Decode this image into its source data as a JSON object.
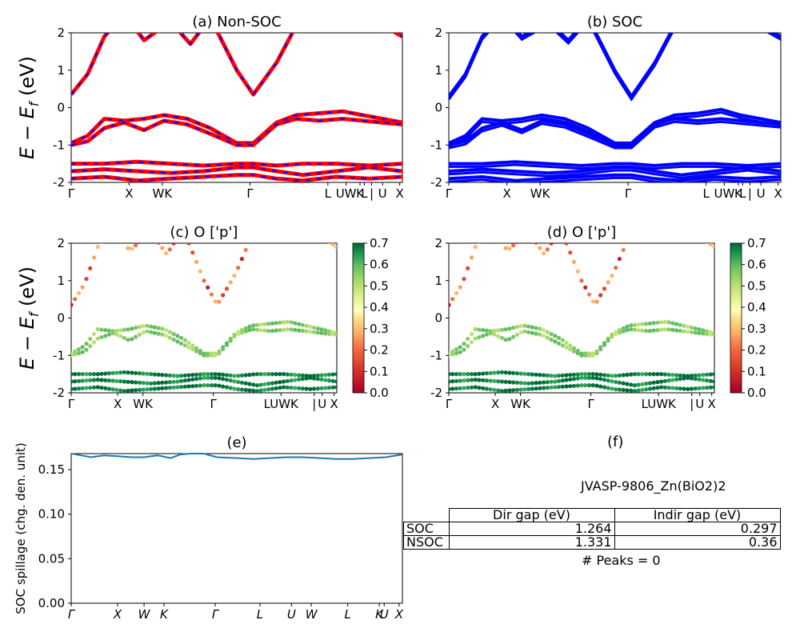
{
  "figure": {
    "ylabel_math": "E − E",
    "ylabel_sub": "f",
    "ylabel_unit": " (eV)",
    "kpath_labels": [
      "Γ",
      "X",
      "WK",
      "Γ",
      "L",
      "UW",
      "K",
      "L",
      "|",
      "U",
      "X"
    ],
    "kpath_labels_spillage": [
      "Γ",
      "X",
      "W",
      "K",
      "Γ",
      "L",
      "U",
      "W",
      "L",
      "K",
      "U",
      "X"
    ]
  },
  "colors": {
    "band_red": "#ff0000",
    "band_blue": "#0000ff",
    "spillage_line": "#1f77b4",
    "cmap_low": "#a50026",
    "cmap_mid": "#ffffbf",
    "cmap_high": "#006837"
  },
  "chart_data": [
    {
      "id": "a",
      "type": "line",
      "title": "(a) Non-SOC",
      "ylabel": "E − E_f (eV)",
      "ylim": [
        -2,
        2
      ],
      "yticks": [
        -2,
        -1,
        0,
        1,
        2
      ],
      "xtick_labels": [
        "Γ",
        "X",
        "WK",
        "Γ",
        "L",
        "UW",
        "K",
        "L",
        "|",
        "U",
        "X"
      ],
      "style": "red line with blue dashes",
      "series": [
        {
          "name": "conduction",
          "x": [
            0,
            0.05,
            0.1,
            0.16,
            0.22,
            0.3,
            0.36,
            0.42,
            0.5,
            0.55,
            0.62,
            0.68,
            0.75,
            0.82,
            0.88,
            0.94,
            1.0
          ],
          "y": [
            0.35,
            0.9,
            1.9,
            2.5,
            1.8,
            2.3,
            1.7,
            2.4,
            1.0,
            0.35,
            1.2,
            2.2,
            2.4,
            2.4,
            2.3,
            2.2,
            1.9
          ]
        },
        {
          "name": "vb1",
          "x": [
            0,
            0.05,
            0.1,
            0.16,
            0.22,
            0.28,
            0.35,
            0.42,
            0.5,
            0.55,
            0.62,
            0.68,
            0.75,
            0.82,
            0.88,
            0.94,
            1.0
          ],
          "y": [
            -0.95,
            -0.75,
            -0.3,
            -0.35,
            -0.3,
            -0.2,
            -0.3,
            -0.55,
            -0.95,
            -0.95,
            -0.4,
            -0.2,
            -0.15,
            -0.1,
            -0.2,
            -0.3,
            -0.4
          ]
        },
        {
          "name": "vb2",
          "x": [
            0,
            0.05,
            0.1,
            0.16,
            0.22,
            0.28,
            0.35,
            0.42,
            0.5,
            0.55,
            0.62,
            0.68,
            0.75,
            0.82,
            0.88,
            0.94,
            1.0
          ],
          "y": [
            -1.0,
            -0.9,
            -0.55,
            -0.4,
            -0.6,
            -0.35,
            -0.45,
            -0.7,
            -1.0,
            -1.0,
            -0.45,
            -0.3,
            -0.35,
            -0.3,
            -0.35,
            -0.4,
            -0.45
          ]
        },
        {
          "name": "vb3",
          "x": [
            0,
            0.1,
            0.2,
            0.3,
            0.4,
            0.5,
            0.55,
            0.62,
            0.7,
            0.8,
            0.9,
            1.0
          ],
          "y": [
            -1.5,
            -1.5,
            -1.45,
            -1.5,
            -1.55,
            -1.5,
            -1.5,
            -1.55,
            -1.5,
            -1.5,
            -1.55,
            -1.5
          ]
        },
        {
          "name": "vb4",
          "x": [
            0,
            0.1,
            0.2,
            0.3,
            0.4,
            0.5,
            0.55,
            0.62,
            0.7,
            0.8,
            0.9,
            1.0
          ],
          "y": [
            -1.7,
            -1.65,
            -1.7,
            -1.75,
            -1.7,
            -1.6,
            -1.6,
            -1.7,
            -1.8,
            -1.7,
            -1.6,
            -1.7
          ]
        },
        {
          "name": "vb5",
          "x": [
            0,
            0.1,
            0.2,
            0.3,
            0.4,
            0.5,
            0.55,
            0.62,
            0.7,
            0.8,
            0.9,
            1.0
          ],
          "y": [
            -1.9,
            -1.85,
            -1.95,
            -1.9,
            -1.85,
            -1.8,
            -1.8,
            -1.9,
            -1.95,
            -1.85,
            -1.9,
            -1.85
          ]
        }
      ]
    },
    {
      "id": "b",
      "type": "line",
      "title": "(b) SOC",
      "ylim": [
        -2,
        2
      ],
      "yticks": [
        -2,
        -1,
        0,
        1,
        2
      ],
      "xtick_labels": [
        "Γ",
        "X",
        "WK",
        "Γ",
        "L",
        "UW",
        "K",
        "L",
        "|",
        "U",
        "X"
      ],
      "series": [
        {
          "name": "conduction",
          "x": [
            0,
            0.05,
            0.1,
            0.16,
            0.22,
            0.3,
            0.36,
            0.42,
            0.5,
            0.55,
            0.62,
            0.68,
            0.75,
            0.82,
            0.88,
            0.94,
            1.0
          ],
          "y": [
            0.3,
            0.9,
            1.9,
            2.5,
            1.9,
            2.3,
            1.8,
            2.4,
            1.0,
            0.3,
            1.2,
            2.2,
            2.4,
            2.4,
            2.3,
            2.2,
            1.9
          ]
        },
        {
          "name": "vb1",
          "x": [
            0,
            0.05,
            0.1,
            0.16,
            0.22,
            0.28,
            0.35,
            0.42,
            0.5,
            0.55,
            0.62,
            0.68,
            0.75,
            0.82,
            0.88,
            0.94,
            1.0
          ],
          "y": [
            -0.95,
            -0.75,
            -0.3,
            -0.35,
            -0.3,
            -0.2,
            -0.3,
            -0.55,
            -0.95,
            -0.95,
            -0.4,
            -0.2,
            -0.15,
            -0.05,
            -0.2,
            -0.3,
            -0.4
          ]
        },
        {
          "name": "vb2",
          "x": [
            0,
            0.05,
            0.1,
            0.16,
            0.22,
            0.28,
            0.35,
            0.42,
            0.5,
            0.55,
            0.62,
            0.68,
            0.75,
            0.82,
            0.88,
            0.94,
            1.0
          ],
          "y": [
            -1.0,
            -0.9,
            -0.55,
            -0.4,
            -0.6,
            -0.35,
            -0.45,
            -0.7,
            -1.0,
            -1.0,
            -0.45,
            -0.3,
            -0.35,
            -0.3,
            -0.35,
            -0.4,
            -0.45
          ]
        },
        {
          "name": "vb3",
          "x": [
            0,
            0.1,
            0.2,
            0.3,
            0.4,
            0.5,
            0.55,
            0.62,
            0.7,
            0.8,
            0.9,
            1.0
          ],
          "y": [
            -1.5,
            -1.5,
            -1.45,
            -1.5,
            -1.55,
            -1.5,
            -1.5,
            -1.55,
            -1.5,
            -1.5,
            -1.55,
            -1.5
          ]
        },
        {
          "name": "vb4",
          "x": [
            0,
            0.1,
            0.2,
            0.3,
            0.4,
            0.5,
            0.55,
            0.62,
            0.7,
            0.8,
            0.9,
            1.0
          ],
          "y": [
            -1.7,
            -1.65,
            -1.7,
            -1.75,
            -1.7,
            -1.6,
            -1.6,
            -1.7,
            -1.8,
            -1.7,
            -1.6,
            -1.7
          ]
        },
        {
          "name": "vb5",
          "x": [
            0,
            0.1,
            0.2,
            0.3,
            0.4,
            0.5,
            0.55,
            0.62,
            0.7,
            0.8,
            0.9,
            1.0
          ],
          "y": [
            -1.9,
            -1.85,
            -1.95,
            -1.9,
            -1.85,
            -1.8,
            -1.8,
            -1.9,
            -1.95,
            -1.85,
            -1.9,
            -1.85
          ]
        }
      ]
    },
    {
      "id": "c",
      "type": "scatter",
      "title": "(c)  O ['p']",
      "ylabel": "E − E_f (eV)",
      "ylim": [
        -2,
        2
      ],
      "yticks": [
        -2,
        -1,
        0,
        1,
        2
      ],
      "xtick_labels": [
        "Γ",
        "X",
        "WK",
        "Γ",
        "LUWK",
        "|",
        "U",
        "X"
      ],
      "colorbar": {
        "min": 0.0,
        "max": 0.7,
        "ticks": [
          "0.0",
          "0.1",
          "0.2",
          "0.3",
          "0.4",
          "0.5",
          "0.6",
          "0.7"
        ]
      },
      "points_note": "orbital-projected weights; valence bands 0.5–0.7 (green), conduction 0.0–0.3 (red/orange)"
    },
    {
      "id": "d",
      "type": "scatter",
      "title": "(d) O ['p']",
      "ylim": [
        -2,
        2
      ],
      "yticks": [
        -2,
        -1,
        0,
        1,
        2
      ],
      "xtick_labels": [
        "Γ",
        "X",
        "WK",
        "Γ",
        "LUWK",
        "|",
        "U",
        "X"
      ],
      "colorbar": {
        "min": 0.0,
        "max": 0.7,
        "ticks": [
          "0.0",
          "0.1",
          "0.2",
          "0.3",
          "0.4",
          "0.5",
          "0.6",
          "0.7"
        ]
      }
    },
    {
      "id": "e",
      "type": "line",
      "title": "(e)",
      "ylabel": "SOC spillage (chg. den. unit)",
      "ylim": [
        0,
        0.168
      ],
      "yticks": [
        "0.00",
        "0.05",
        "0.10",
        "0.15"
      ],
      "xtick_labels": [
        "Γ",
        "X",
        "W",
        "K",
        "Γ",
        "L",
        "U",
        "W",
        "L",
        "K",
        "U",
        "X"
      ],
      "x": [
        0,
        0.03,
        0.06,
        0.1,
        0.14,
        0.18,
        0.22,
        0.26,
        0.3,
        0.33,
        0.36,
        0.4,
        0.44,
        0.5,
        0.55,
        0.6,
        0.65,
        0.7,
        0.75,
        0.8,
        0.85,
        0.9,
        0.95,
        1.0
      ],
      "values": [
        0.168,
        0.166,
        0.164,
        0.166,
        0.165,
        0.164,
        0.164,
        0.166,
        0.163,
        0.167,
        0.168,
        0.168,
        0.164,
        0.163,
        0.162,
        0.163,
        0.164,
        0.164,
        0.163,
        0.162,
        0.162,
        0.163,
        0.164,
        0.167
      ]
    }
  ],
  "panel_f": {
    "title": "(f)",
    "material": "JVASP-9806_Zn(BiO2)2",
    "table": {
      "headers": [
        "Dir gap (eV)",
        "Indir gap (eV)"
      ],
      "rows": [
        {
          "label": "SOC",
          "dir": "1.264",
          "indir": "0.297"
        },
        {
          "label": "NSOC",
          "dir": "1.331",
          "indir": "0.36"
        }
      ]
    },
    "peaks": "# Peaks = 0"
  }
}
